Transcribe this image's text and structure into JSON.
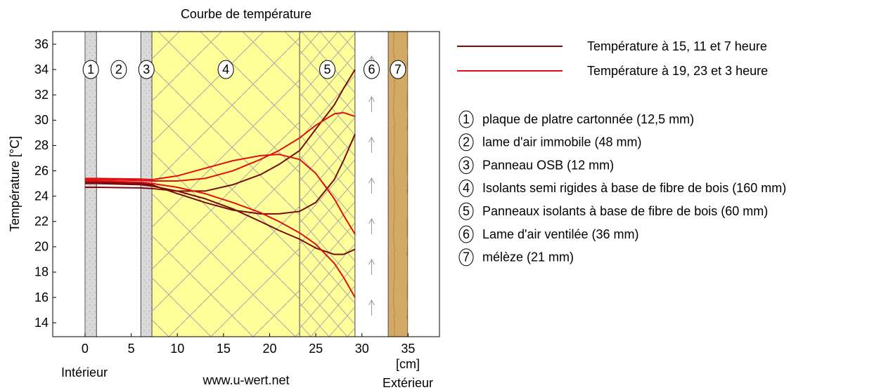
{
  "chart_data": {
    "type": "line",
    "title": "Courbe de température",
    "y_label": "Température [°C]",
    "x_unit": "[cm]",
    "left_label": "Intérieur",
    "right_label": "Extérieur",
    "source": "www.u-wert.net",
    "xlim": [
      -3.5,
      38.4
    ],
    "ylim": [
      12.9,
      37
    ],
    "xticks": [
      0,
      5,
      10,
      15,
      20,
      25,
      30,
      35
    ],
    "yticks": [
      14,
      16,
      18,
      20,
      22,
      24,
      26,
      28,
      30,
      32,
      34,
      36
    ],
    "x": [
      0,
      1.25,
      6.05,
      7.25,
      10,
      13,
      16,
      19,
      21,
      23.25,
      25,
      27,
      28,
      29.25
    ],
    "series": [
      {
        "name": "Température à 15, 11 et 7 heure",
        "color": "#7a0a0a",
        "lines": [
          [
            24.7,
            24.7,
            24.65,
            24.6,
            24.4,
            24.4,
            24.9,
            25.7,
            26.5,
            27.6,
            29.3,
            31.2,
            32.5,
            34
          ],
          [
            25.1,
            25.1,
            25.0,
            24.9,
            24.2,
            23.5,
            22.9,
            22.6,
            22.6,
            22.8,
            23.5,
            25.3,
            26.8,
            28.9
          ],
          [
            25.0,
            25.0,
            24.9,
            24.8,
            24.4,
            23.8,
            23.0,
            22.0,
            21.3,
            20.6,
            19.9,
            19.4,
            19.4,
            19.8
          ]
        ]
      },
      {
        "name": "Température à 19, 23 et 3 heure",
        "color": "#e01010",
        "lines": [
          [
            25.3,
            25.3,
            25.25,
            25.2,
            25.2,
            25.4,
            26.0,
            26.9,
            27.6,
            28.6,
            29.6,
            30.5,
            30.6,
            30.3
          ],
          [
            25.4,
            25.4,
            25.35,
            25.3,
            25.6,
            26.2,
            26.8,
            27.2,
            27.3,
            26.9,
            25.8,
            23.8,
            22.5,
            21.0
          ],
          [
            25.2,
            25.2,
            25.1,
            25.0,
            24.7,
            24.2,
            23.5,
            22.7,
            22.0,
            21.1,
            20.2,
            18.7,
            17.6,
            16.0
          ]
        ]
      }
    ],
    "layers": [
      {
        "number": "1",
        "label": "plaque de platre cartonnée (12,5 mm)",
        "start": 0,
        "end": 1.25,
        "color": "#d9d9d9"
      },
      {
        "number": "2",
        "label": "lame d'air immobile (48 mm)",
        "start": 1.25,
        "end": 6.05,
        "color": "#ffffff"
      },
      {
        "number": "3",
        "label": "Panneau OSB (12 mm)",
        "start": 6.05,
        "end": 7.25,
        "color": "#d9d9d9"
      },
      {
        "number": "4",
        "label": "Isolants semi rigides à base de fibre de bois (160 mm)",
        "start": 7.25,
        "end": 23.25,
        "color": "#ffff99"
      },
      {
        "number": "5",
        "label": "Panneaux isolants à base de fibre de bois (60 mm)",
        "start": 23.25,
        "end": 29.25,
        "color": "#ffff99"
      },
      {
        "number": "6",
        "label": "Lame d'air ventilée (36 mm)",
        "start": 29.25,
        "end": 32.85,
        "color": "#ffffff"
      },
      {
        "number": "7",
        "label": "mélèze (21 mm)",
        "start": 32.85,
        "end": 34.95,
        "color": "#d4a865"
      }
    ],
    "layer_label_y": 34
  }
}
